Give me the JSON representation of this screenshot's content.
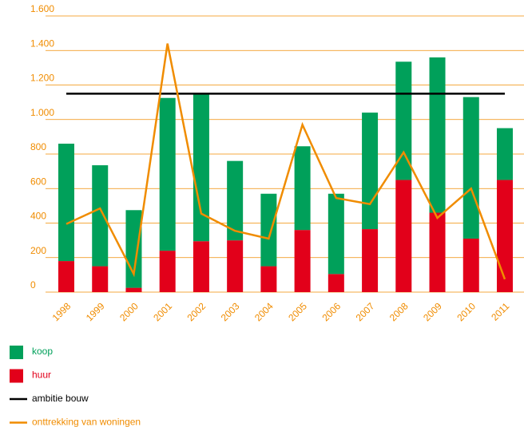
{
  "chart_data": {
    "type": "bar",
    "categories": [
      "1998",
      "1999",
      "2000",
      "2001",
      "2002",
      "2003",
      "2004",
      "2005",
      "2006",
      "2007",
      "2008",
      "2009",
      "2010",
      "2011"
    ],
    "series": [
      {
        "name": "huur",
        "type": "bar",
        "color": "#e2001a",
        "values": [
          180,
          150,
          25,
          240,
          295,
          300,
          150,
          360,
          105,
          365,
          650,
          460,
          310,
          650
        ]
      },
      {
        "name": "koop",
        "type": "bar",
        "color": "#00a05a",
        "values": [
          680,
          585,
          450,
          885,
          855,
          460,
          420,
          485,
          465,
          675,
          685,
          900,
          820,
          300
        ]
      },
      {
        "name": "ambitie bouw",
        "type": "line",
        "color": "#000000",
        "values": [
          1150,
          1150,
          1150,
          1150,
          1150,
          1150,
          1150,
          1150,
          1150,
          1150,
          1150,
          1150,
          1150,
          1150
        ]
      },
      {
        "name": "onttrekking van woningen",
        "type": "line",
        "color": "#f08c00",
        "values": [
          395,
          485,
          105,
          1440,
          455,
          355,
          310,
          970,
          545,
          510,
          810,
          430,
          600,
          75
        ]
      }
    ],
    "legend_order": [
      "koop",
      "huur",
      "ambitie bouw",
      "onttrekking van woningen"
    ],
    "ylim": [
      0,
      1600
    ],
    "yticks": [
      0,
      200,
      400,
      600,
      800,
      {
        "value": 1000,
        "label": "1.000"
      },
      {
        "value": 1200,
        "label": "1.200"
      },
      {
        "value": 1400,
        "label": "1.400"
      },
      {
        "value": 1600,
        "label": "1.600"
      }
    ],
    "grid": true
  }
}
